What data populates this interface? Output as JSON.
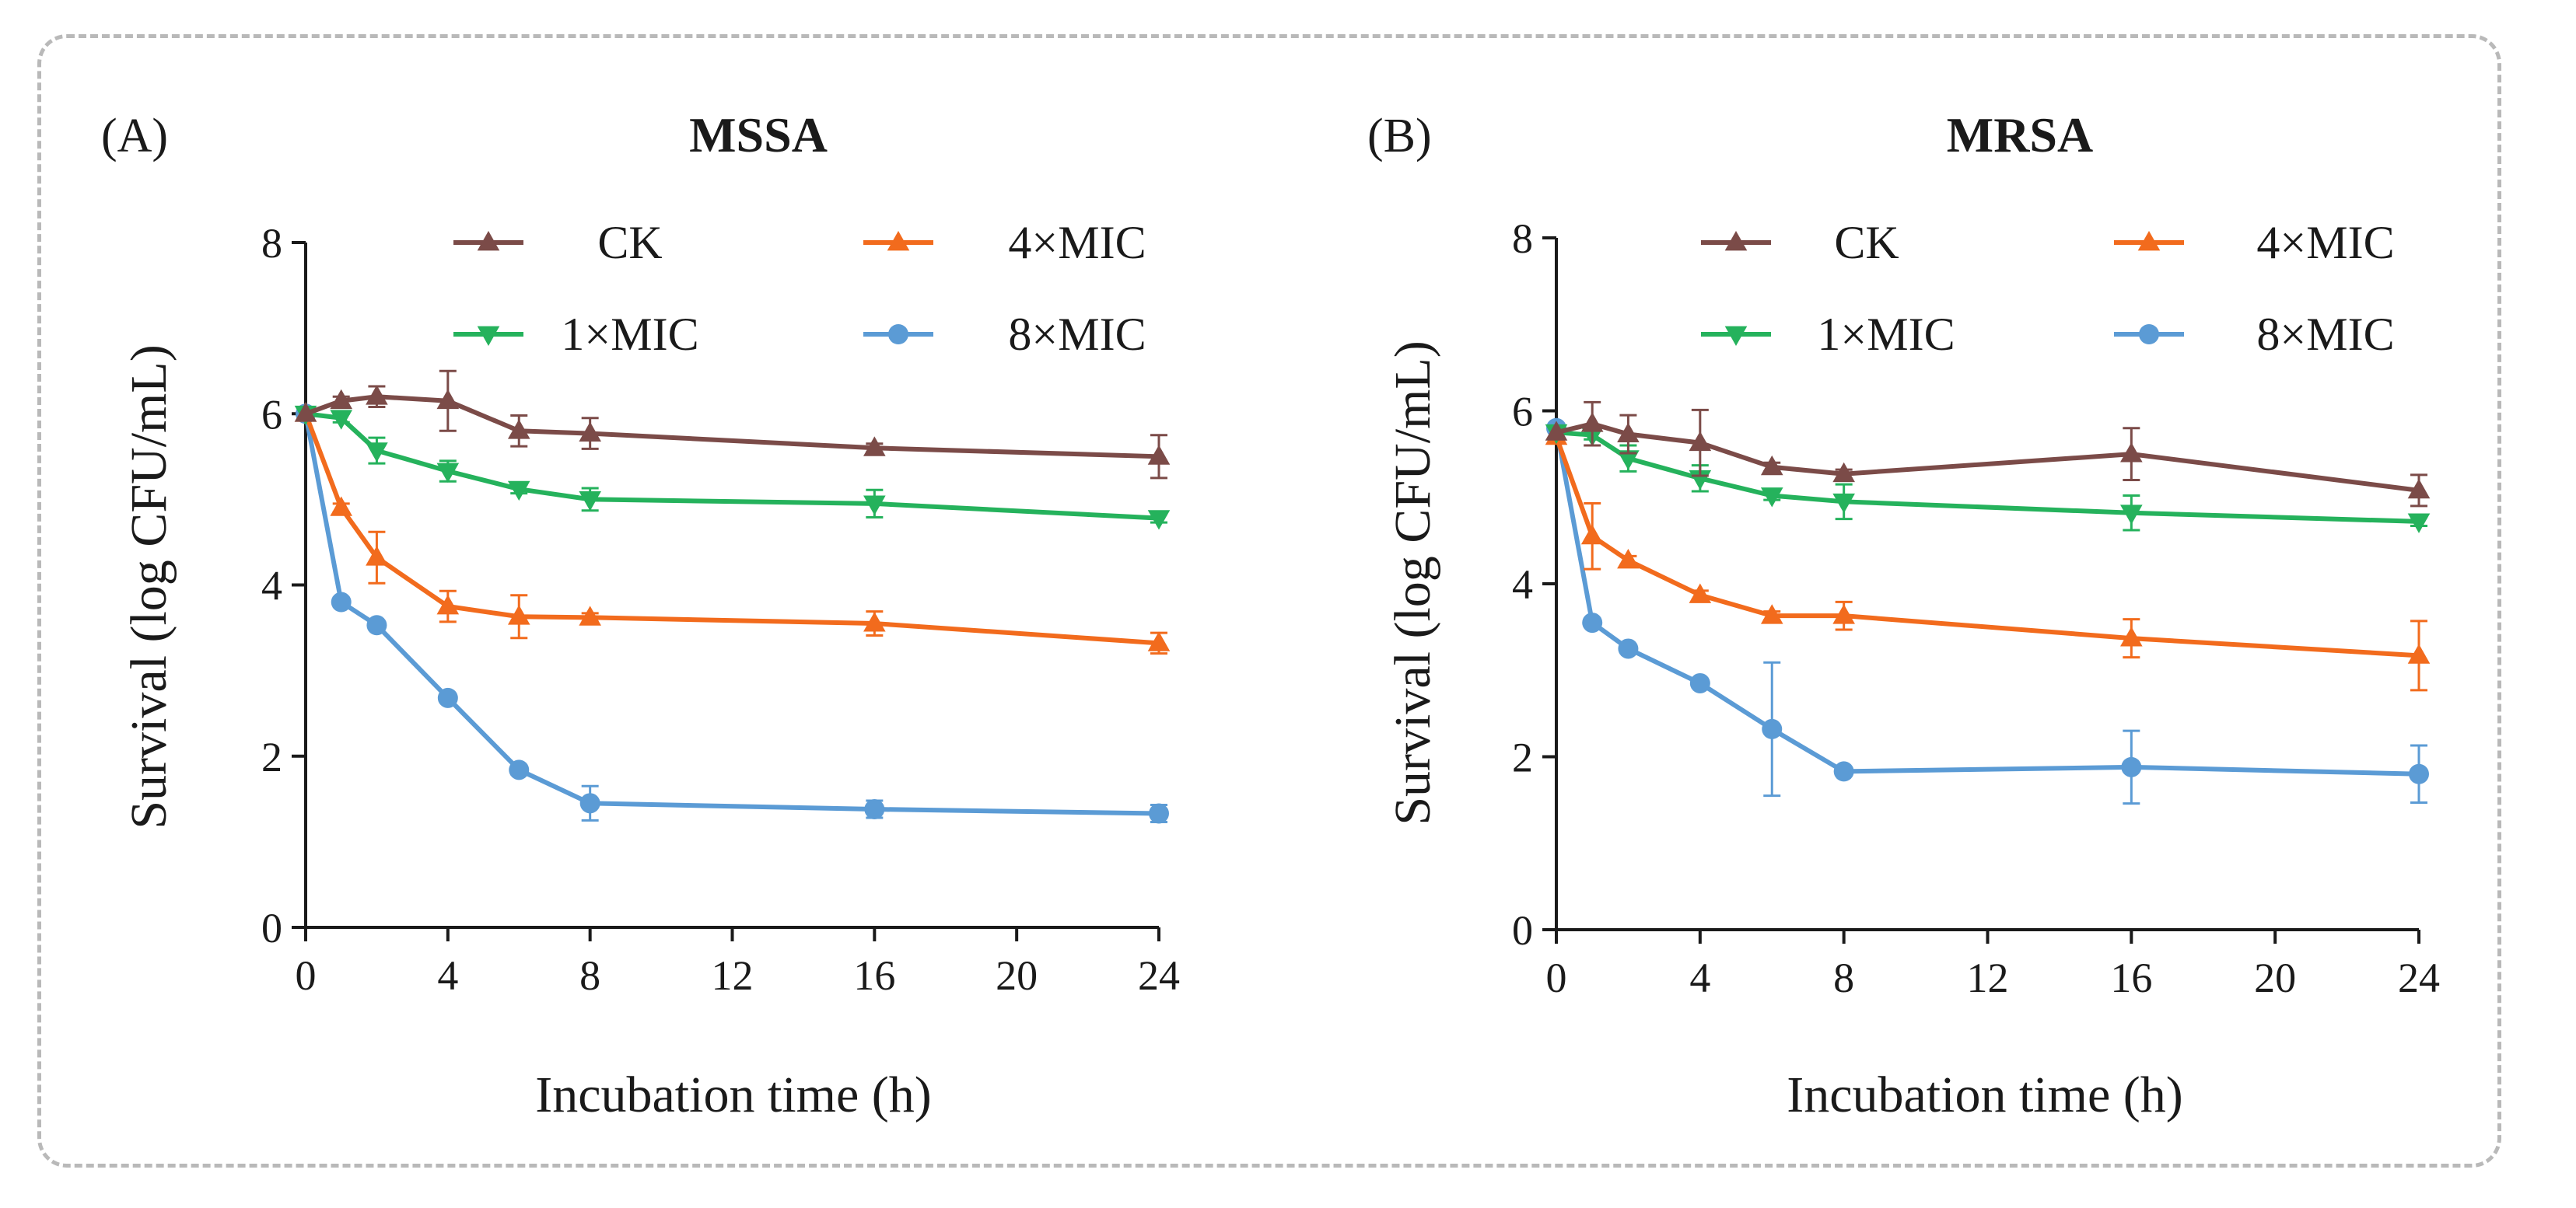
{
  "figure": {
    "xlabel": "Incubation time (h)",
    "ylabel": "Survival (log CFU/mL)"
  },
  "series_style": [
    {
      "name": "CK",
      "color": "#7b4b48",
      "marker": "triangle-up"
    },
    {
      "name": "4×MIC",
      "color": "#f26b1d",
      "marker": "triangle-up"
    },
    {
      "name": "1×MIC",
      "color": "#25b25c",
      "marker": "triangle-down"
    },
    {
      "name": "8×MIC",
      "color": "#5b9bd5",
      "marker": "circle"
    }
  ],
  "chart_data": [
    {
      "type": "line",
      "panel_label": "(A)",
      "title": "MSSA",
      "xlabel": "Incubation time (h)",
      "ylabel": "Survival (log CFU/mL)",
      "x": [
        0,
        1,
        2,
        4,
        6,
        8,
        16,
        24
      ],
      "xlim": [
        0,
        24
      ],
      "ylim": [
        0,
        8
      ],
      "xticks": [
        0,
        4,
        8,
        12,
        16,
        20,
        24
      ],
      "yticks": [
        0,
        2,
        4,
        6,
        8
      ],
      "legend": "top-right",
      "series": [
        {
          "name": "CK",
          "values": [
            6.0,
            6.15,
            6.2,
            6.15,
            5.8,
            5.77,
            5.6,
            5.5
          ],
          "errors": [
            0,
            0.05,
            0.12,
            0.35,
            0.18,
            0.18,
            0.05,
            0.25
          ]
        },
        {
          "name": "1×MIC",
          "values": [
            6.0,
            5.95,
            5.57,
            5.33,
            5.12,
            5.0,
            4.95,
            4.78
          ],
          "errors": [
            0,
            0.05,
            0.15,
            0.12,
            0.05,
            0.13,
            0.16,
            0.05
          ]
        },
        {
          "name": "4×MIC",
          "values": [
            6.0,
            4.9,
            4.32,
            3.75,
            3.63,
            3.62,
            3.55,
            3.32
          ],
          "errors": [
            0,
            0.05,
            0.3,
            0.18,
            0.25,
            0.05,
            0.14,
            0.12
          ]
        },
        {
          "name": "8×MIC",
          "values": [
            6.0,
            3.8,
            3.53,
            2.68,
            1.84,
            1.45,
            1.38,
            1.33
          ],
          "errors": [
            0,
            0.05,
            0.05,
            0.05,
            0.05,
            0.2,
            0.1,
            0.1
          ]
        }
      ]
    },
    {
      "type": "line",
      "panel_label": "(B)",
      "title": "MRSA",
      "xlabel": "Incubation time (h)",
      "ylabel": "Survival (log CFU/mL)",
      "x": [
        0,
        1,
        2,
        4,
        6,
        8,
        16,
        24
      ],
      "xlim": [
        0,
        24
      ],
      "ylim": [
        0,
        8
      ],
      "xticks": [
        0,
        4,
        8,
        12,
        16,
        20,
        24
      ],
      "yticks": [
        0,
        2,
        4,
        6,
        8
      ],
      "legend": "top-right",
      "series": [
        {
          "name": "CK",
          "values": [
            5.75,
            5.85,
            5.73,
            5.63,
            5.35,
            5.27,
            5.5,
            5.08
          ],
          "errors": [
            0,
            0.25,
            0.22,
            0.38,
            0.05,
            0.05,
            0.3,
            0.18
          ]
        },
        {
          "name": "1×MIC",
          "values": [
            5.75,
            5.72,
            5.45,
            5.22,
            5.02,
            4.95,
            4.82,
            4.72
          ],
          "errors": [
            0,
            0.05,
            0.15,
            0.15,
            0.05,
            0.2,
            0.2,
            0.05
          ]
        },
        {
          "name": "4×MIC",
          "values": [
            5.7,
            4.55,
            4.27,
            3.87,
            3.63,
            3.63,
            3.37,
            3.17
          ],
          "errors": [
            0,
            0.38,
            0.05,
            0.05,
            0.05,
            0.16,
            0.22,
            0.4
          ]
        },
        {
          "name": "8×MIC",
          "values": [
            5.8,
            3.55,
            3.25,
            2.85,
            2.32,
            1.83,
            1.88,
            1.8
          ],
          "errors": [
            0,
            0.05,
            0.05,
            0.05,
            0.77,
            0.05,
            0.42,
            0.33
          ]
        }
      ]
    }
  ]
}
